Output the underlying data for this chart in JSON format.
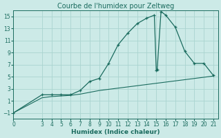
{
  "title": "Courbe de l'humidex pour Zeltweg",
  "xlabel": "Humidex (Indice chaleur)",
  "background_color": "#cceae7",
  "line_color": "#1a6b5e",
  "grid_color": "#aad4d0",
  "xlim": [
    0,
    21.5
  ],
  "ylim": [
    -2,
    16
  ],
  "yticks": [
    -1,
    1,
    3,
    5,
    7,
    9,
    11,
    13,
    15
  ],
  "xticks": [
    0,
    3,
    4,
    5,
    6,
    7,
    8,
    9,
    10,
    11,
    12,
    13,
    14,
    15,
    16,
    17,
    18,
    19,
    20,
    21
  ],
  "curve1_x": [
    0,
    3,
    4,
    5,
    6,
    7,
    8,
    9,
    10,
    11,
    12,
    13,
    14,
    14.8,
    15.0,
    15.1,
    15.5,
    16,
    17,
    18,
    19,
    20,
    21
  ],
  "curve1_y": [
    -1,
    2,
    2,
    2,
    2,
    2.7,
    4.2,
    4.7,
    7.2,
    10.3,
    12.2,
    13.8,
    14.7,
    15.2,
    6.0,
    6.2,
    15.8,
    15.2,
    13.2,
    9.2,
    7.2,
    7.2,
    5.2
  ],
  "curve2_x": [
    0,
    3,
    4,
    5,
    6,
    7,
    8,
    9,
    10,
    11,
    12,
    13,
    14,
    15,
    16,
    17,
    18,
    19,
    20,
    21
  ],
  "curve2_y": [
    -1,
    1.5,
    1.7,
    1.8,
    1.9,
    2.1,
    2.4,
    2.7,
    2.9,
    3.1,
    3.3,
    3.5,
    3.7,
    3.9,
    4.1,
    4.3,
    4.5,
    4.7,
    4.9,
    5.1
  ],
  "tick_fontsize": 5.5,
  "label_fontsize": 6.5,
  "title_fontsize": 7.0
}
